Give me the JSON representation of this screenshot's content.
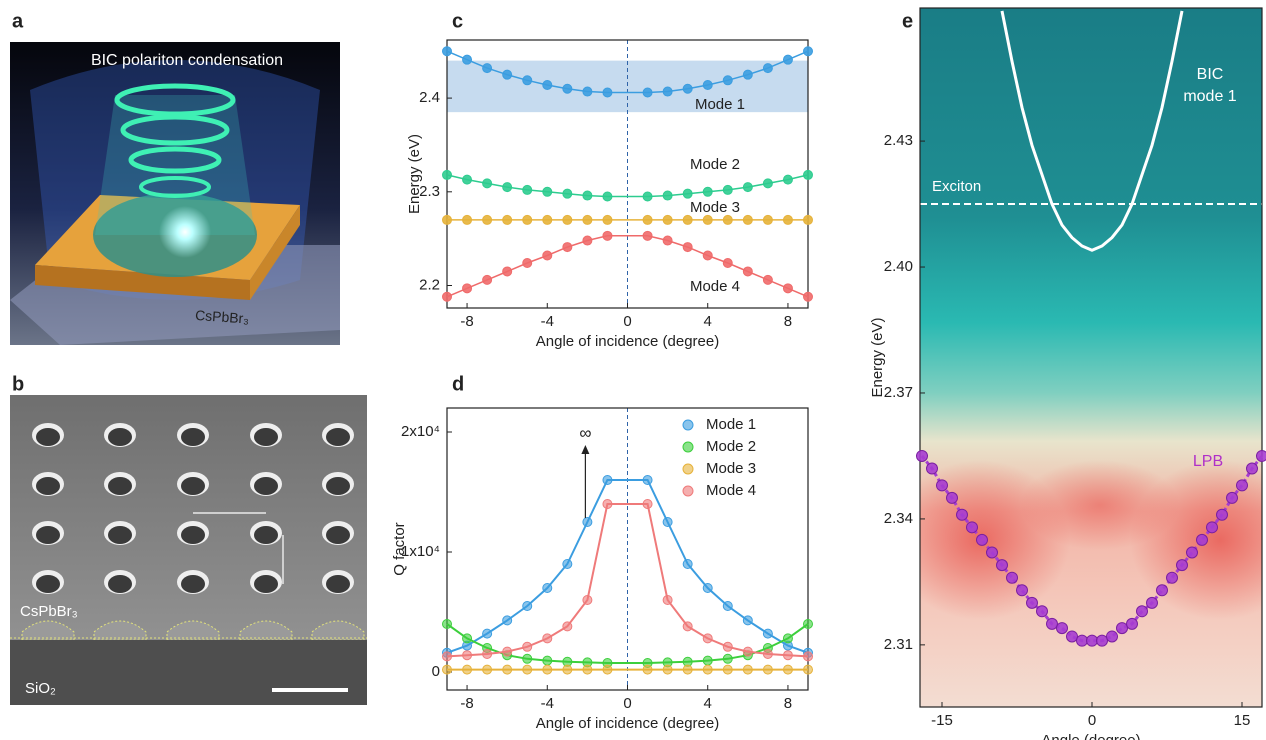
{
  "panel_labels": [
    "a",
    "b",
    "c",
    "d",
    "e"
  ],
  "panel_a": {
    "title": "BIC polariton condensation",
    "label": "CsPbBr₃"
  },
  "panel_b": {
    "labels": [
      "CsPbBr₃",
      "SiO₂"
    ]
  },
  "chart_data": [
    {
      "type": "line",
      "xlabel": "Angle of incidence (degree)",
      "ylabel": "Energy (eV)",
      "x": [
        -9,
        -8,
        -7,
        -6,
        -5,
        -4,
        -3,
        -2,
        -1,
        1,
        2,
        3,
        4,
        5,
        6,
        7,
        8,
        9
      ],
      "xlim": [
        -9,
        9
      ],
      "xticks": [
        -8,
        -4,
        0,
        4,
        8
      ],
      "ylim": [
        2.176,
        2.462
      ],
      "yticks": [
        2.2,
        2.3,
        2.4
      ],
      "band": [
        2.385,
        2.44
      ],
      "band_color": "#c6dbef",
      "vline": 0,
      "series": [
        {
          "name": "Mode 1",
          "color": "#3b9de0",
          "values": [
            2.45,
            2.441,
            2.432,
            2.425,
            2.419,
            2.414,
            2.41,
            2.407,
            2.406,
            2.406,
            2.407,
            2.41,
            2.414,
            2.419,
            2.425,
            2.432,
            2.441,
            2.45
          ]
        },
        {
          "name": "Mode 2",
          "color": "#2dcc8f",
          "values": [
            2.318,
            2.313,
            2.309,
            2.305,
            2.302,
            2.3,
            2.298,
            2.296,
            2.295,
            2.295,
            2.296,
            2.298,
            2.3,
            2.302,
            2.305,
            2.309,
            2.313,
            2.318
          ]
        },
        {
          "name": "Mode 3",
          "color": "#e6b23a",
          "values": [
            2.27,
            2.27,
            2.27,
            2.27,
            2.27,
            2.27,
            2.27,
            2.27,
            2.27,
            2.27,
            2.27,
            2.27,
            2.27,
            2.27,
            2.27,
            2.27,
            2.27,
            2.27
          ]
        },
        {
          "name": "Mode 4",
          "color": "#ef6a6a",
          "values": [
            2.188,
            2.197,
            2.206,
            2.215,
            2.224,
            2.232,
            2.241,
            2.248,
            2.253,
            2.253,
            2.248,
            2.241,
            2.232,
            2.224,
            2.215,
            2.206,
            2.197,
            2.188
          ]
        }
      ]
    },
    {
      "type": "line",
      "xlabel": "Angle of incidence (degree)",
      "ylabel": "Q factor",
      "annotation": "∞",
      "x": [
        -9,
        -8,
        -7,
        -6,
        -5,
        -4,
        -3,
        -2,
        -1,
        1,
        2,
        3,
        4,
        5,
        6,
        7,
        8,
        9
      ],
      "xlim": [
        -9,
        9
      ],
      "xticks": [
        -8,
        -4,
        0,
        4,
        8
      ],
      "ylim": [
        -1500,
        22000
      ],
      "yticks": [
        0,
        {
          "value": 10000,
          "label": "1x10⁴"
        },
        {
          "value": 20000,
          "label": "2x10⁴"
        }
      ],
      "vline": 0,
      "legend": "upper right",
      "series": [
        {
          "name": "Mode 1",
          "color": "#3b9de0",
          "values": [
            1600,
            2200,
            3200,
            4300,
            5500,
            7000,
            9000,
            12500,
            16000,
            16000,
            12500,
            9000,
            7000,
            5500,
            4300,
            3200,
            2200,
            1600
          ]
        },
        {
          "name": "Mode 2",
          "color": "#3ccf3c",
          "values": [
            4000,
            2800,
            2000,
            1400,
            1100,
            950,
            850,
            800,
            750,
            750,
            800,
            850,
            950,
            1100,
            1400,
            2000,
            2800,
            4000
          ]
        },
        {
          "name": "Mode 3",
          "color": "#e6b23a",
          "values": [
            200,
            200,
            200,
            200,
            200,
            200,
            200,
            200,
            200,
            200,
            200,
            200,
            200,
            200,
            200,
            200,
            200,
            200
          ]
        },
        {
          "name": "Mode 4",
          "color": "#ef7a7a",
          "values": [
            1300,
            1400,
            1500,
            1700,
            2100,
            2800,
            3800,
            6000,
            14000,
            14000,
            6000,
            3800,
            2800,
            2100,
            1700,
            1500,
            1400,
            1300
          ]
        }
      ]
    },
    {
      "type": "line",
      "xlabel": "Angle (degree)",
      "ylabel": "Energy (eV)",
      "xlim": [
        -17.2,
        17
      ],
      "xticks": [
        -15,
        0,
        15
      ],
      "ylim": [
        2.2952,
        2.4617
      ],
      "yticks": [
        2.31,
        2.34,
        2.37,
        {
          "value": 2.4,
          "label": "2.40"
        },
        2.43
      ],
      "hline": {
        "name": "Exciton",
        "value": 2.415
      },
      "series": [
        {
          "name": "BIC mode 1",
          "color": "#ffffff",
          "x": [
            -9,
            -8,
            -7,
            -6,
            -5,
            -4,
            -3,
            -2,
            -1,
            0,
            1,
            2,
            3,
            4,
            5,
            6,
            7,
            8,
            9
          ],
          "values": [
            2.461,
            2.449,
            2.438,
            2.429,
            2.422,
            2.415,
            2.41,
            2.407,
            2.405,
            2.404,
            2.405,
            2.407,
            2.41,
            2.415,
            2.422,
            2.429,
            2.438,
            2.449,
            2.461
          ]
        },
        {
          "name": "LPB",
          "color": "#a63cd0",
          "x": [
            -17,
            -16,
            -15,
            -14,
            -13,
            -12,
            -11,
            -10,
            -9,
            -8,
            -7,
            -6,
            -5,
            -4,
            -3,
            -2,
            -1,
            0,
            1,
            2,
            3,
            4,
            5,
            6,
            7,
            8,
            9,
            10,
            11,
            12,
            13,
            14,
            15,
            16,
            17
          ],
          "values": [
            2.355,
            2.352,
            2.348,
            2.345,
            2.341,
            2.338,
            2.335,
            2.332,
            2.329,
            2.326,
            2.323,
            2.32,
            2.318,
            2.315,
            2.314,
            2.312,
            2.311,
            2.311,
            2.311,
            2.312,
            2.314,
            2.315,
            2.318,
            2.32,
            2.323,
            2.326,
            2.329,
            2.332,
            2.335,
            2.338,
            2.341,
            2.345,
            2.348,
            2.352,
            2.355
          ]
        }
      ]
    }
  ]
}
